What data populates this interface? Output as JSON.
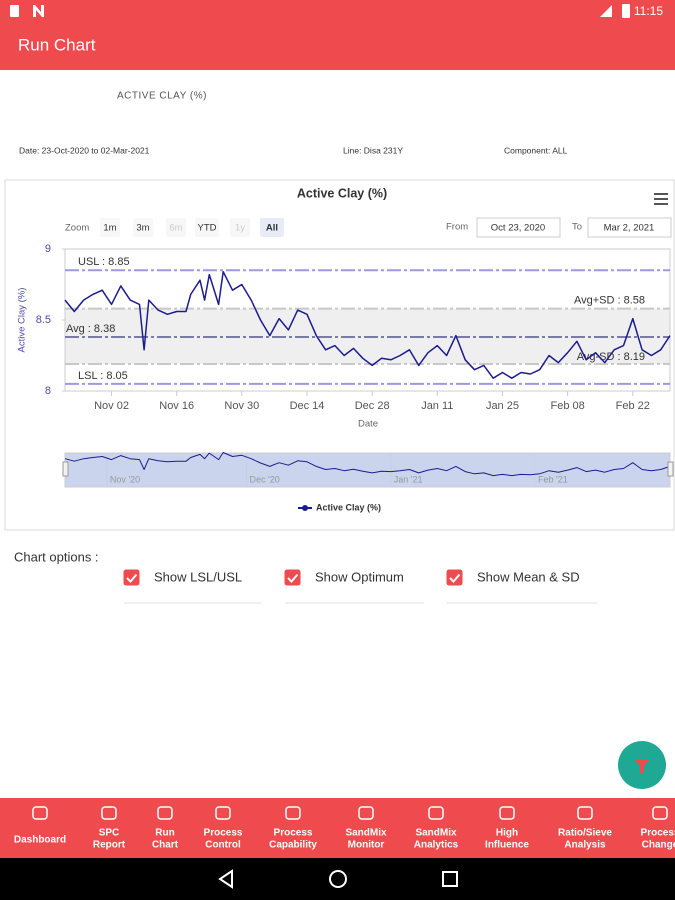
{
  "status_bar": {
    "time": "11:15"
  },
  "app_bar": {
    "title": "Run Chart"
  },
  "report": {
    "heading": "ACTIVE CLAY (%)",
    "date_range": "Date: 23-Oct-2020 to 02-Mar-2021",
    "line": "Line: Disa 231Y",
    "component": "Component: ALL"
  },
  "zoom": {
    "label": "Zoom",
    "buttons": [
      {
        "label": "1m",
        "state": "enabled"
      },
      {
        "label": "3m",
        "state": "enabled"
      },
      {
        "label": "6m",
        "state": "disabled"
      },
      {
        "label": "YTD",
        "state": "enabled"
      },
      {
        "label": "1y",
        "state": "disabled"
      },
      {
        "label": "All",
        "state": "selected"
      }
    ],
    "from_label": "From",
    "from": "Oct 23, 2020",
    "to_label": "To",
    "to": "Mar 2, 2021"
  },
  "chart_data": {
    "type": "line",
    "title": "Active Clay (%)",
    "x_label": "Date",
    "y_label": "Active Clay (%)",
    "x": [
      "2020-10-23",
      "2020-10-25",
      "2020-10-27",
      "2020-10-29",
      "2020-10-31",
      "2020-11-02",
      "2020-11-04",
      "2020-11-06",
      "2020-11-08",
      "2020-11-09",
      "2020-11-10",
      "2020-11-12",
      "2020-11-14",
      "2020-11-16",
      "2020-11-18",
      "2020-11-19",
      "2020-11-21",
      "2020-11-22",
      "2020-11-23",
      "2020-11-25",
      "2020-11-26",
      "2020-11-28",
      "2020-11-30",
      "2020-12-02",
      "2020-12-04",
      "2020-12-06",
      "2020-12-08",
      "2020-12-10",
      "2020-12-12",
      "2020-12-14",
      "2020-12-16",
      "2020-12-18",
      "2020-12-20",
      "2020-12-22",
      "2020-12-24",
      "2020-12-26",
      "2020-12-28",
      "2020-12-30",
      "2021-01-01",
      "2021-01-03",
      "2021-01-05",
      "2021-01-07",
      "2021-01-09",
      "2021-01-11",
      "2021-01-13",
      "2021-01-15",
      "2021-01-17",
      "2021-01-19",
      "2021-01-21",
      "2021-01-23",
      "2021-01-25",
      "2021-01-27",
      "2021-01-29",
      "2021-01-31",
      "2021-02-02",
      "2021-02-04",
      "2021-02-06",
      "2021-02-08",
      "2021-02-10",
      "2021-02-12",
      "2021-02-14",
      "2021-02-16",
      "2021-02-18",
      "2021-02-20",
      "2021-02-22",
      "2021-02-24",
      "2021-02-26",
      "2021-02-28",
      "2021-03-02"
    ],
    "series": [
      {
        "name": "Active Clay (%)",
        "color": "#1c1c8f",
        "values": [
          8.64,
          8.56,
          8.64,
          8.68,
          8.71,
          8.61,
          8.74,
          8.64,
          8.61,
          8.29,
          8.64,
          8.57,
          8.54,
          8.56,
          8.56,
          8.68,
          8.78,
          8.64,
          8.82,
          8.61,
          8.84,
          8.71,
          8.75,
          8.64,
          8.5,
          8.39,
          8.51,
          8.43,
          8.57,
          8.54,
          8.39,
          8.29,
          8.32,
          8.25,
          8.3,
          8.23,
          8.18,
          8.23,
          8.22,
          8.25,
          8.29,
          8.18,
          8.27,
          8.32,
          8.25,
          8.39,
          8.22,
          8.15,
          8.18,
          8.09,
          8.13,
          8.09,
          8.13,
          8.12,
          8.15,
          8.25,
          8.2,
          8.27,
          8.35,
          8.22,
          8.27,
          8.2,
          8.29,
          8.32,
          8.51,
          8.29,
          8.25,
          8.29,
          8.39
        ]
      }
    ],
    "xlim": [
      "2020-10-23",
      "2021-03-02"
    ],
    "xticks": [
      {
        "value": "2020-11-02",
        "label": "Nov 02"
      },
      {
        "value": "2020-11-16",
        "label": "Nov 16"
      },
      {
        "value": "2020-11-30",
        "label": "Nov 30"
      },
      {
        "value": "2020-12-14",
        "label": "Dec 14"
      },
      {
        "value": "2020-12-28",
        "label": "Dec 28"
      },
      {
        "value": "2021-01-11",
        "label": "Jan 11"
      },
      {
        "value": "2021-01-25",
        "label": "Jan 25"
      },
      {
        "value": "2021-02-08",
        "label": "Feb 08"
      },
      {
        "value": "2021-02-22",
        "label": "Feb 22"
      }
    ],
    "ylim": [
      8,
      9
    ],
    "yticks": [
      8,
      8.5,
      9
    ],
    "grid": false,
    "band": {
      "from": 8.19,
      "to": 8.58,
      "color": "#efefef"
    },
    "plot_lines": [
      {
        "label": "USL : 8.85",
        "value": 8.85,
        "align": "left",
        "color": "#9a9ae0"
      },
      {
        "label": "Avg+SD : 8.58",
        "value": 8.58,
        "align": "right",
        "color": "#c8c8c8"
      },
      {
        "label": "Avg : 8.38",
        "value": 8.38,
        "align": "left",
        "color": "#7a7aa8"
      },
      {
        "label": "Avg-SD : 8.19",
        "value": 8.19,
        "align": "right",
        "color": "#c8c8c8"
      },
      {
        "label": "LSL : 8.05",
        "value": 8.05,
        "align": "left",
        "color": "#9a9ae0"
      }
    ],
    "navigator_ticks": [
      {
        "value": "2020-11-01",
        "label": "Nov '20"
      },
      {
        "value": "2020-12-01",
        "label": "Dec '20"
      },
      {
        "value": "2021-01-01",
        "label": "Jan '21"
      },
      {
        "value": "2021-02-01",
        "label": "Feb '21"
      }
    ]
  },
  "chart_options": {
    "label": "Chart options :",
    "options": [
      {
        "label": "Show LSL/USL",
        "checked": true
      },
      {
        "label": "Show Optimum",
        "checked": true
      },
      {
        "label": "Show Mean & SD",
        "checked": true
      }
    ]
  },
  "bottom_nav": [
    {
      "lines": [
        "Dashboard"
      ]
    },
    {
      "lines": [
        "SPC",
        "Report"
      ]
    },
    {
      "lines": [
        "Run",
        "Chart"
      ]
    },
    {
      "lines": [
        "Process",
        "Control"
      ]
    },
    {
      "lines": [
        "Process",
        "Capability"
      ]
    },
    {
      "lines": [
        "SandMix",
        "Monitor"
      ]
    },
    {
      "lines": [
        "SandMix",
        "Analytics"
      ]
    },
    {
      "lines": [
        "High",
        "Influence"
      ]
    },
    {
      "lines": [
        "Ratio/Sieve",
        "Analysis"
      ]
    },
    {
      "lines": [
        "Process",
        "Change"
      ]
    }
  ]
}
